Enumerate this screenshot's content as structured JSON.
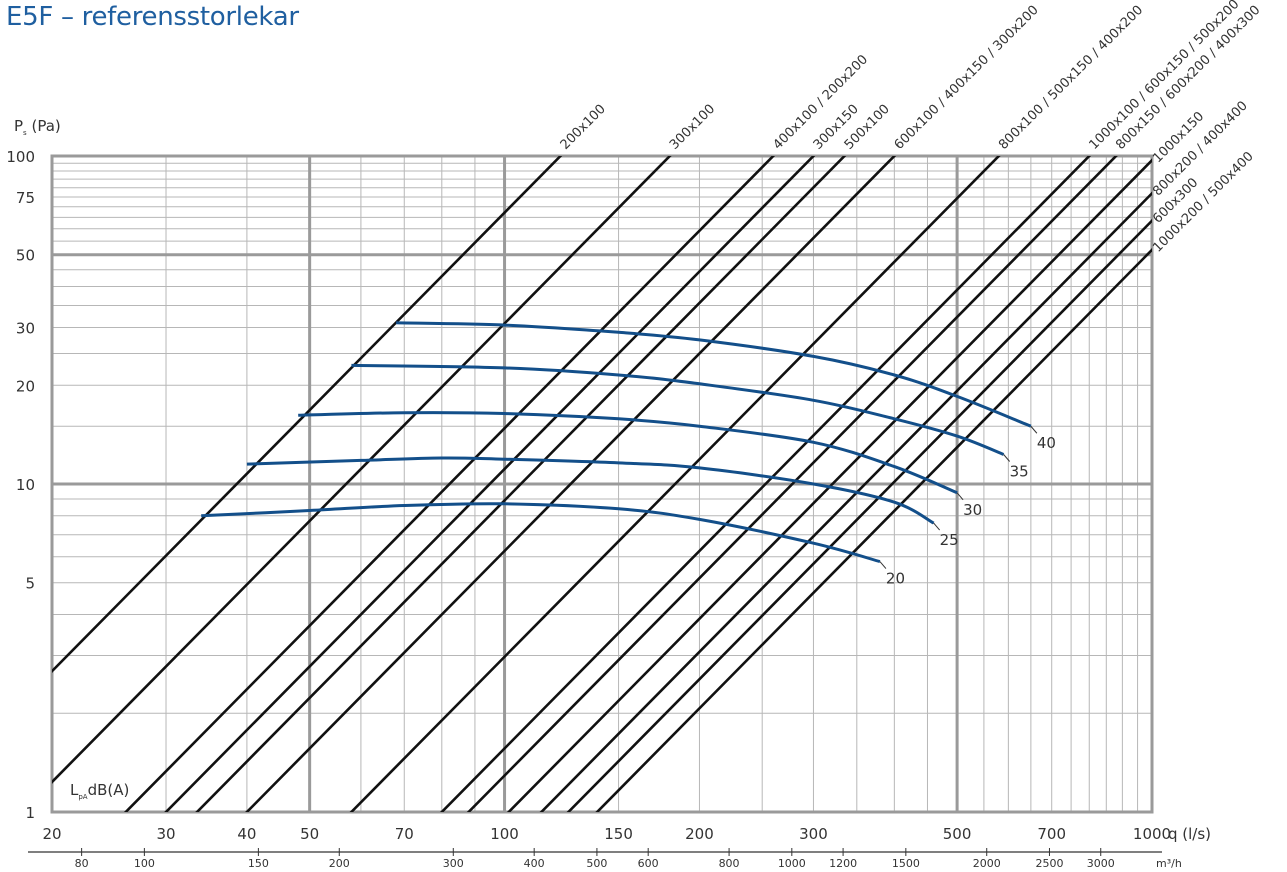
{
  "title": "E5F – referensstorlekar",
  "chart_data": {
    "type": "line",
    "title": "E5F – referensstorlekar",
    "xlabel": "q (l/s)",
    "xlabel_secondary": "m³/h",
    "ylabel": "P",
    "ylabel_sub": "s",
    "ylabel_unit": " (Pa)",
    "curves_label": "L",
    "curves_label_sub": "pA",
    "curves_label_unit": "dB(A)",
    "x_scale": "log",
    "y_scale": "log",
    "xlim": [
      20,
      1000
    ],
    "ylim": [
      1,
      100
    ],
    "grid": true,
    "x_ticks": [
      20,
      30,
      40,
      50,
      70,
      100,
      150,
      200,
      300,
      500,
      700,
      1000
    ],
    "x_tick_labels": [
      "20",
      "30",
      "40",
      "50",
      "70",
      "100",
      "150",
      "200",
      "300",
      "500",
      "700",
      "1000"
    ],
    "y_ticks": [
      1,
      5,
      10,
      20,
      30,
      50,
      75,
      100
    ],
    "y_tick_labels": [
      "1",
      "5",
      "10",
      "20",
      "30",
      "50",
      "75",
      "100"
    ],
    "secondary_x_ticks": [
      80,
      100,
      150,
      200,
      300,
      400,
      500,
      600,
      800,
      1000,
      1200,
      1500,
      2000,
      2500,
      3000
    ],
    "secondary_x_tick_labels": [
      "80",
      "100",
      "150",
      "200",
      "300",
      "400",
      "500",
      "600",
      "800",
      "1000",
      "1200",
      "1500",
      "2000",
      "2500",
      "3000"
    ],
    "size_lines": [
      {
        "name": "200x100",
        "q_at_100pa": 122
      },
      {
        "name": "300x100",
        "q_at_100pa": 180
      },
      {
        "name": "400x100 / 200x200",
        "q_at_100pa": 260
      },
      {
        "name": "300x150",
        "q_at_100pa": 300
      },
      {
        "name": "500x100",
        "q_at_100pa": 335
      },
      {
        "name": "600x100 / 400x150 / 300x200",
        "q_at_100pa": 400
      },
      {
        "name": "800x100 / 500x150 / 400x200",
        "q_at_100pa": 580
      },
      {
        "name": "1000x100 / 600x150 / 500x200",
        "q_at_100pa": 800
      },
      {
        "name": "800x150 / 600x200 / 400x300",
        "q_at_100pa": 880
      },
      {
        "name": "1000x150",
        "q_at_100pa": 1015
      },
      {
        "name": "800x200 / 400x400",
        "q_at_100pa": 1140
      },
      {
        "name": "600x300",
        "q_at_100pa": 1255
      },
      {
        "name": "1000x200 / 500x400",
        "q_at_100pa": 1390
      }
    ],
    "series": [
      {
        "name": "20",
        "points": [
          [
            34,
            8
          ],
          [
            50,
            8.3
          ],
          [
            70,
            8.6
          ],
          [
            100,
            8.7
          ],
          [
            150,
            8.4
          ],
          [
            200,
            7.8
          ],
          [
            300,
            6.6
          ],
          [
            380,
            5.8
          ]
        ]
      },
      {
        "name": "25",
        "points": [
          [
            40,
            11.5
          ],
          [
            60,
            11.8
          ],
          [
            80,
            12
          ],
          [
            100,
            11.9
          ],
          [
            150,
            11.6
          ],
          [
            200,
            11.2
          ],
          [
            300,
            10
          ],
          [
            400,
            8.8
          ],
          [
            460,
            7.6
          ]
        ]
      },
      {
        "name": "30",
        "points": [
          [
            48,
            16.2
          ],
          [
            70,
            16.5
          ],
          [
            100,
            16.4
          ],
          [
            150,
            15.8
          ],
          [
            200,
            15
          ],
          [
            300,
            13.4
          ],
          [
            400,
            11.3
          ],
          [
            500,
            9.4
          ]
        ]
      },
      {
        "name": "35",
        "points": [
          [
            58,
            23
          ],
          [
            100,
            22.6
          ],
          [
            150,
            21.5
          ],
          [
            200,
            20.2
          ],
          [
            300,
            18
          ],
          [
            400,
            15.8
          ],
          [
            500,
            14
          ],
          [
            590,
            12.3
          ]
        ]
      },
      {
        "name": "40",
        "points": [
          [
            68,
            31
          ],
          [
            100,
            30.5
          ],
          [
            150,
            29
          ],
          [
            200,
            27.5
          ],
          [
            300,
            24.5
          ],
          [
            400,
            21.5
          ],
          [
            500,
            18.5
          ],
          [
            650,
            15
          ]
        ]
      }
    ]
  }
}
